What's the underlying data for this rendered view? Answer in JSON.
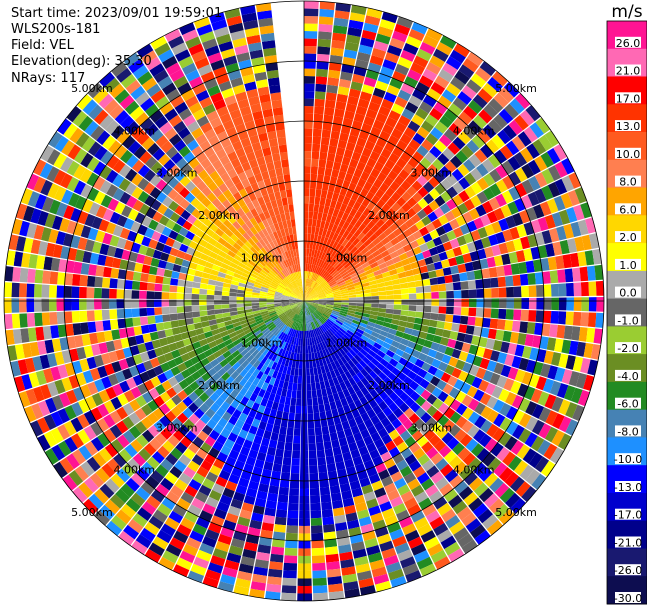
{
  "header": {
    "start_time": "Start time: 2023/09/01 19:59:01",
    "instrument": "WLS200s-181",
    "field": "Field: VEL",
    "elevation": "Elevation(deg): 35.30",
    "nrays": "NRays: 117"
  },
  "chart_data": {
    "type": "heatmap",
    "projection": "polar-ppi",
    "field": "VEL",
    "units": "m/s",
    "range_km_max": 5.0,
    "range_rings_km": [
      1,
      2,
      3,
      4,
      5
    ],
    "ring_labels": [
      "1.00km",
      "2.00km",
      "3.00km",
      "4.00km",
      "5.00km"
    ],
    "n_rays": 117,
    "data_gap_azimuth_deg": [
      351,
      0
    ],
    "colorbar": {
      "label": "m/s",
      "ticks": [
        "26.0",
        "21.0",
        "17.0",
        "13.0",
        "10.0",
        "8.0",
        "6.0",
        "2.0",
        "1.0",
        "0.0",
        "-1.0",
        "-2.0",
        "-4.0",
        "-6.0",
        "-8.0",
        "-10.0",
        "-13.0",
        "-17.0",
        "-21.0",
        "-26.0",
        "-30.0"
      ],
      "colors": [
        "#ff1493",
        "#ff69b4",
        "#ff0000",
        "#ff3300",
        "#ff5a1f",
        "#ff7f50",
        "#ffa500",
        "#ffd700",
        "#ffff00",
        "#aaaaaa",
        "#666666",
        "#9acd32",
        "#6b8e23",
        "#228b22",
        "#4682b4",
        "#1e90ff",
        "#0000ff",
        "#0000cd",
        "#00008b",
        "#191970",
        "#0d0d50"
      ]
    }
  }
}
